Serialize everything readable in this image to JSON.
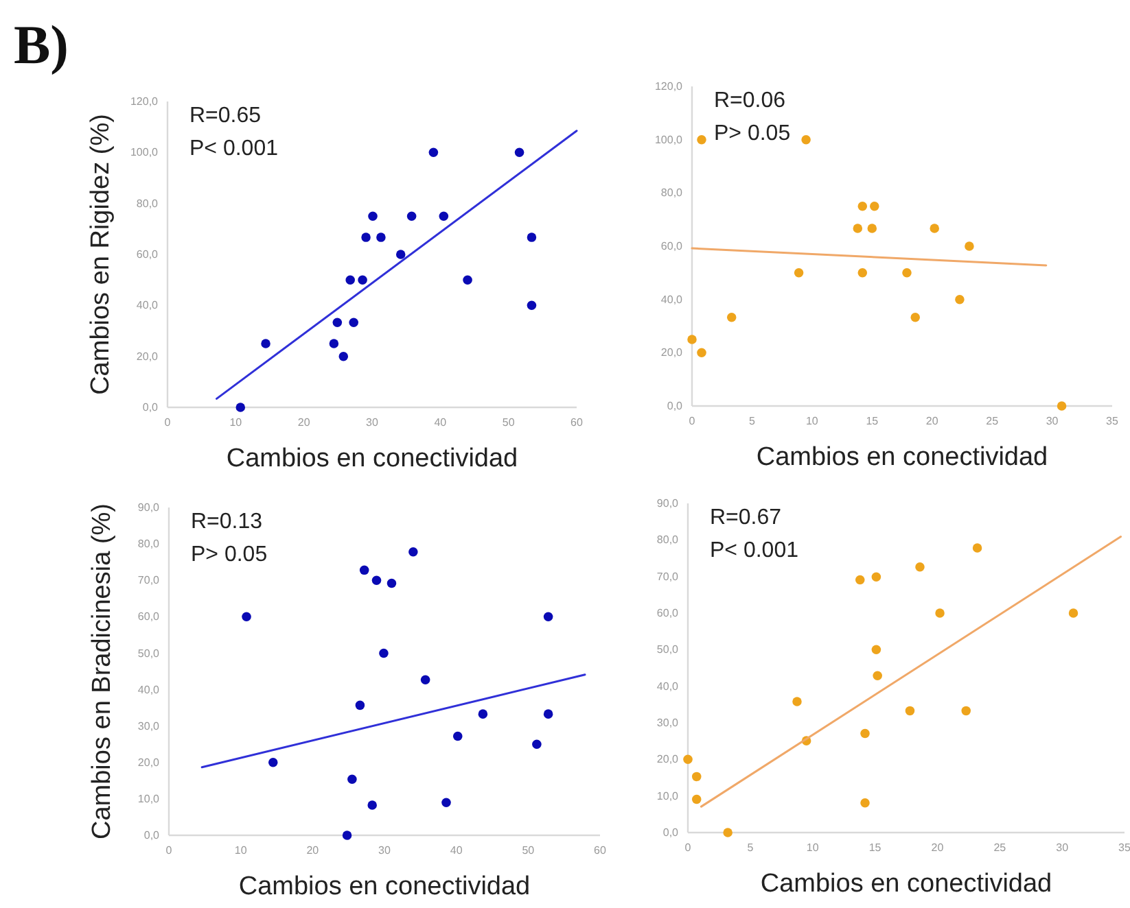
{
  "chart_data": [
    {
      "type": "scatter",
      "title": "B)",
      "xlabel": "Cambios en conectividad",
      "ylabel": "Cambios en Rigidez (%)",
      "annotations": [
        "R=0.65",
        "P< 0.001"
      ],
      "grid": false,
      "xlim": [
        0,
        60
      ],
      "ylim": [
        0,
        120
      ],
      "xticks": [
        0,
        10,
        20,
        30,
        40,
        50,
        60
      ],
      "yticks": [
        {
          "value": 0,
          "label": "0,0"
        },
        {
          "value": 20,
          "label": "20,0"
        },
        {
          "value": 40,
          "label": "40,0"
        },
        {
          "value": 60,
          "label": "60,0"
        },
        {
          "value": 80,
          "label": "80,0"
        },
        {
          "value": 100,
          "label": "100,0"
        },
        {
          "value": 120,
          "label": "120,0"
        }
      ],
      "series": [
        {
          "color": "#0a0ab4",
          "marker": "circle",
          "x": [
            10.7,
            14.4,
            24.4,
            24.9,
            25.8,
            26.8,
            27.3,
            28.6,
            29.1,
            30.1,
            31.3,
            34.2,
            35.8,
            39.0,
            40.5,
            44.0,
            51.6,
            53.4,
            53.4
          ],
          "values": [
            0,
            25,
            25,
            33.3,
            20,
            50,
            33.3,
            50,
            66.7,
            75,
            66.7,
            60,
            75,
            100,
            75,
            50,
            100,
            66.7,
            40
          ]
        },
        {
          "type": "line",
          "color": "#3030d8",
          "x": [
            7.2,
            60
          ],
          "values": [
            3.4,
            108.5
          ]
        }
      ]
    },
    {
      "type": "scatter",
      "xlabel": "Cambios en conectividad",
      "annotations": [
        "R=0.06",
        "P> 0.05"
      ],
      "grid": false,
      "xlim": [
        0,
        35
      ],
      "ylim": [
        0,
        120
      ],
      "xticks": [
        0,
        5,
        10,
        15,
        20,
        25,
        30,
        35
      ],
      "yticks": [
        {
          "value": 0,
          "label": "0,0"
        },
        {
          "value": 20,
          "label": "20,0"
        },
        {
          "value": 40,
          "label": "40,0"
        },
        {
          "value": 60,
          "label": "60,0"
        },
        {
          "value": 80,
          "label": "80,0"
        },
        {
          "value": 100,
          "label": "100,0"
        },
        {
          "value": 120,
          "label": "120,0"
        }
      ],
      "series": [
        {
          "color": "#eea41c",
          "marker": "circle",
          "x": [
            0,
            0.8,
            0.8,
            3.3,
            8.9,
            9.5,
            13.8,
            14.2,
            14.2,
            15.0,
            15.2,
            17.9,
            18.6,
            20.2,
            22.3,
            23.1,
            30.8
          ],
          "values": [
            25,
            100,
            20,
            33.3,
            50,
            100,
            66.7,
            75,
            50,
            66.7,
            75,
            50,
            33.3,
            66.7,
            40,
            60,
            0
          ]
        },
        {
          "type": "line",
          "color": "#f0a868",
          "x": [
            0,
            29.5
          ],
          "values": [
            59.2,
            52.8
          ]
        }
      ]
    },
    {
      "type": "scatter",
      "xlabel": "Cambios en conectividad",
      "ylabel": "Cambios en Bradicinesia (%)",
      "annotations": [
        "R=0.13",
        "P> 0.05"
      ],
      "grid": false,
      "xlim": [
        0,
        60
      ],
      "ylim": [
        0,
        90
      ],
      "xticks": [
        0,
        10,
        20,
        30,
        40,
        50,
        60
      ],
      "yticks": [
        {
          "value": 0,
          "label": "0,0"
        },
        {
          "value": 10,
          "label": "10,0"
        },
        {
          "value": 20,
          "label": "20,0"
        },
        {
          "value": 30,
          "label": "30,0"
        },
        {
          "value": 40,
          "label": "40,0"
        },
        {
          "value": 50,
          "label": "50,0"
        },
        {
          "value": 60,
          "label": "60,0"
        },
        {
          "value": 70,
          "label": "70,0"
        },
        {
          "value": 80,
          "label": "80,0"
        },
        {
          "value": 90,
          "label": "90,0"
        }
      ],
      "series": [
        {
          "color": "#0a0ab4",
          "marker": "circle",
          "x": [
            10.8,
            14.5,
            24.8,
            25.5,
            26.6,
            27.2,
            28.3,
            28.9,
            29.9,
            31.0,
            34.0,
            35.7,
            38.6,
            40.2,
            43.7,
            51.2,
            52.8,
            52.8
          ],
          "values": [
            60,
            20,
            0,
            15.4,
            35.7,
            72.8,
            8.3,
            70,
            50,
            69.2,
            77.8,
            42.7,
            9,
            27.2,
            33.3,
            25,
            60,
            33.3
          ]
        },
        {
          "type": "line",
          "color": "#3030d8",
          "x": [
            4.6,
            57.9
          ],
          "values": [
            18.7,
            44.1
          ]
        }
      ]
    },
    {
      "type": "scatter",
      "xlabel": "Cambios en conectividad",
      "annotations": [
        "R=0.67",
        "P< 0.001"
      ],
      "grid": false,
      "xlim": [
        0,
        35
      ],
      "ylim": [
        0,
        90
      ],
      "xticks": [
        0,
        5,
        10,
        15,
        20,
        25,
        30,
        35
      ],
      "yticks": [
        {
          "value": 0,
          "label": "0,0"
        },
        {
          "value": 10,
          "label": "10,0"
        },
        {
          "value": 20,
          "label": "20,0"
        },
        {
          "value": 30,
          "label": "30,0"
        },
        {
          "value": 40,
          "label": "40,0"
        },
        {
          "value": 50,
          "label": "50,0"
        },
        {
          "value": 60,
          "label": "60,0"
        },
        {
          "value": 70,
          "label": "70,0"
        },
        {
          "value": 80,
          "label": "80,0"
        },
        {
          "value": 90,
          "label": "90,0"
        }
      ],
      "series": [
        {
          "color": "#eea41c",
          "marker": "circle",
          "x": [
            0,
            0.7,
            0.7,
            3.2,
            8.75,
            9.5,
            13.8,
            14.2,
            14.2,
            15.1,
            15.1,
            15.2,
            17.8,
            18.6,
            20.2,
            22.3,
            23.2,
            30.9
          ],
          "values": [
            20,
            15.3,
            9.1,
            0,
            35.8,
            25.1,
            69.1,
            27.1,
            8.1,
            69.9,
            50,
            42.9,
            33.3,
            72.6,
            60,
            33.3,
            77.8,
            60
          ]
        },
        {
          "type": "line",
          "color": "#f0a868",
          "x": [
            1.07,
            34.7
          ],
          "values": [
            7.1,
            80.9
          ]
        }
      ]
    }
  ]
}
